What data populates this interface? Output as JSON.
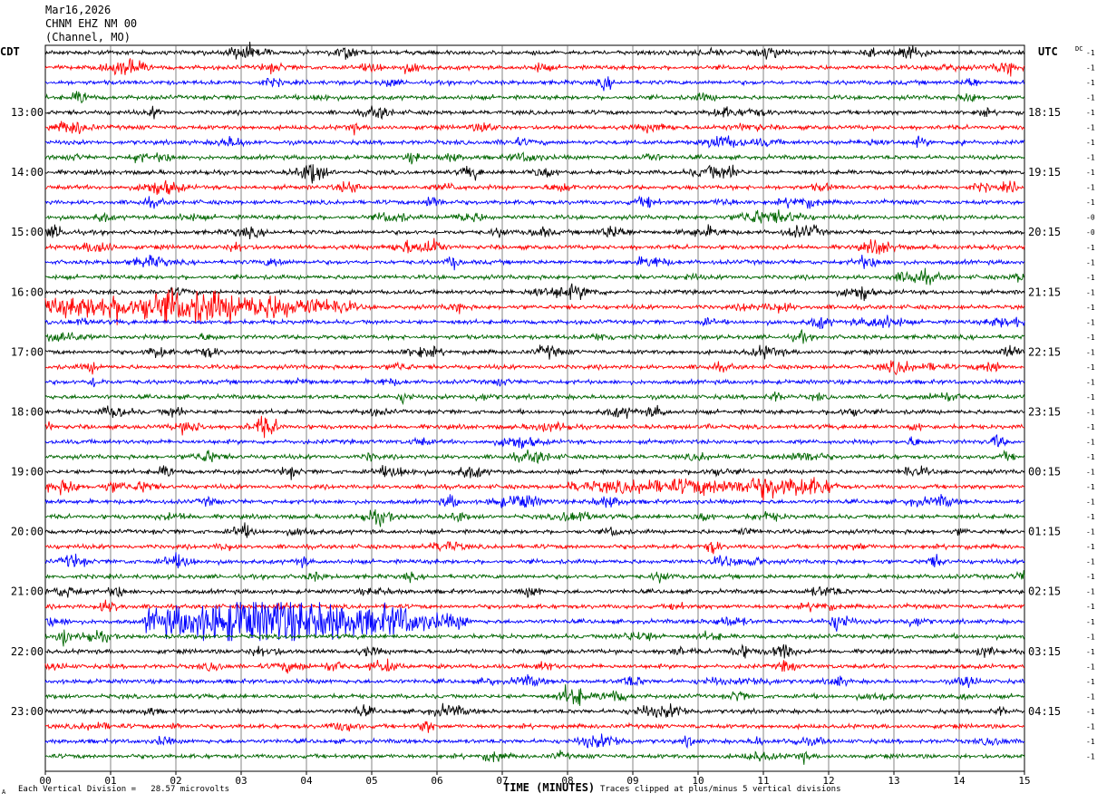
{
  "header": {
    "date": "Mar16,2026",
    "station": "CHNM EHZ NM 00",
    "location": "(Channel, MO)"
  },
  "left_zone_label": "CDT",
  "right_zone_label": "UTC",
  "dc_label": "DC",
  "footer": {
    "scale_note": "Each Vertical Division =   28.57 microvolts",
    "clip_note": "Traces clipped at plus/minus 5 vertical divisions",
    "corner_mark": "A"
  },
  "chart_data": {
    "type": "line",
    "title": "",
    "xlabel": "TIME (MINUTES)",
    "ylabel": "",
    "xlim": [
      0,
      15
    ],
    "x_ticks": [
      "00",
      "01",
      "02",
      "03",
      "04",
      "05",
      "06",
      "07",
      "08",
      "09",
      "10",
      "11",
      "12",
      "13",
      "14",
      "15"
    ],
    "grid": "vertical lines at each minute",
    "trace_colors": [
      "#000000",
      "#ff0000",
      "#0000ff",
      "#006600"
    ],
    "rows_per_hour": 4,
    "num_rows": 48,
    "left_time_labels": [
      "13:00",
      "14:00",
      "15:00",
      "16:00",
      "17:00",
      "18:00",
      "19:00",
      "20:00",
      "21:00",
      "22:00",
      "23:00"
    ],
    "right_time_labels": [
      "18:15",
      "19:15",
      "20:15",
      "21:15",
      "22:15",
      "23:15",
      "00:15",
      "01:15",
      "02:15",
      "03:15",
      "04:15"
    ],
    "dc_offsets": [
      "-1",
      "-1",
      "-1",
      "-1",
      "-1",
      "-1",
      "-1",
      "-1",
      "-1",
      "-1",
      "-1",
      "-0",
      "-0",
      "-1",
      "-1",
      "-1",
      "-1",
      "-1",
      "-1",
      "-1",
      "-1",
      "-1",
      "-1",
      "-1",
      "-1",
      "-1",
      "-1",
      "-1",
      "-1",
      "-1",
      "-1",
      "-1",
      "-1",
      "-1",
      "-1",
      "-1",
      "-1",
      "-1",
      "-1",
      "-1",
      "-1",
      "-1",
      "-1",
      "-1",
      "-1",
      "-1",
      "-1",
      "-1"
    ],
    "event_bursts": [
      {
        "row": 17,
        "start_min": 0,
        "end_min": 4.2,
        "peak_min": 2.5,
        "relative_amplitude": 3.5
      },
      {
        "row": 29,
        "start_min": 8.0,
        "end_min": 12.2,
        "peak_min": 11.8,
        "relative_amplitude": 1.8
      },
      {
        "row": 38,
        "start_min": 1.5,
        "end_min": 6.5,
        "peak_min": 3.5,
        "relative_amplitude": 5.0
      }
    ]
  }
}
